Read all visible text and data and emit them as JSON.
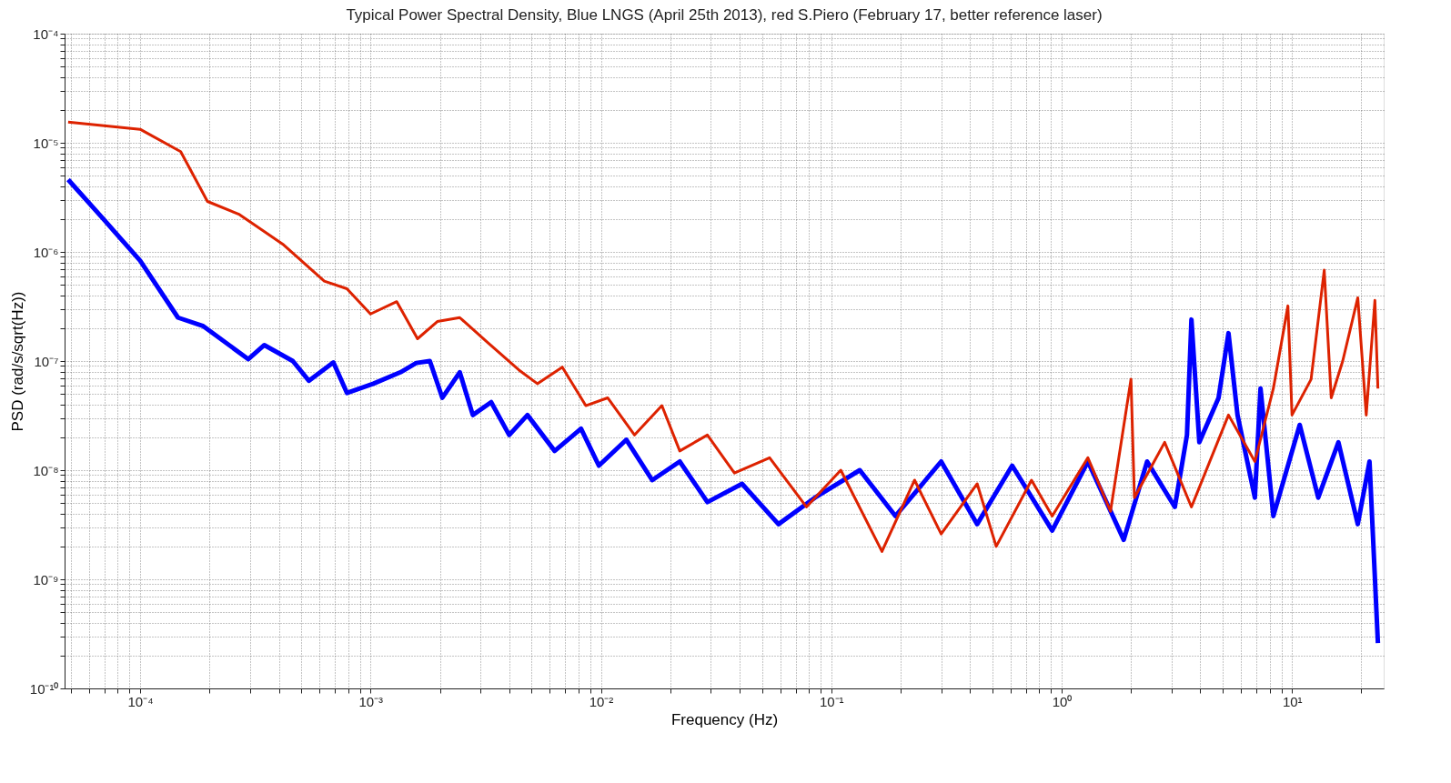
{
  "chart_data": {
    "type": "line",
    "title": "Typical Power Spectral Density, Blue LNGS (April 25th 2013), red S.Piero (February 17, better reference laser)",
    "xlabel": "Frequency (Hz)",
    "ylabel": "PSD (rad/s/sqrt(Hz))",
    "log": "xy",
    "grid": true,
    "legend": false,
    "marker": "none",
    "line_style": "solid",
    "xlim": [
      4.7e-05,
      25
    ],
    "ylim": [
      1e-10,
      0.0001
    ],
    "xticks": [
      {
        "value": 5e-05,
        "label": null
      },
      {
        "value": 6e-05,
        "label": null
      },
      {
        "value": 7e-05,
        "label": null
      },
      {
        "value": 8e-05,
        "label": null
      },
      {
        "value": 9e-05,
        "label": null
      },
      {
        "value": 0.0001,
        "label": "10⁻⁴"
      },
      {
        "value": 0.0002,
        "label": null
      },
      {
        "value": 0.0003,
        "label": null
      },
      {
        "value": 0.0004,
        "label": null
      },
      {
        "value": 0.0005,
        "label": null
      },
      {
        "value": 0.0006,
        "label": null
      },
      {
        "value": 0.0007,
        "label": null
      },
      {
        "value": 0.0008,
        "label": null
      },
      {
        "value": 0.0009,
        "label": null
      },
      {
        "value": 0.001,
        "label": "10⁻³"
      },
      {
        "value": 0.002,
        "label": null
      },
      {
        "value": 0.003,
        "label": null
      },
      {
        "value": 0.004,
        "label": null
      },
      {
        "value": 0.005,
        "label": null
      },
      {
        "value": 0.006,
        "label": null
      },
      {
        "value": 0.007,
        "label": null
      },
      {
        "value": 0.008,
        "label": null
      },
      {
        "value": 0.009,
        "label": null
      },
      {
        "value": 0.01,
        "label": "10⁻²"
      },
      {
        "value": 0.02,
        "label": null
      },
      {
        "value": 0.03,
        "label": null
      },
      {
        "value": 0.04,
        "label": null
      },
      {
        "value": 0.05,
        "label": null
      },
      {
        "value": 0.06,
        "label": null
      },
      {
        "value": 0.07,
        "label": null
      },
      {
        "value": 0.08,
        "label": null
      },
      {
        "value": 0.09,
        "label": null
      },
      {
        "value": 0.1,
        "label": "10⁻¹"
      },
      {
        "value": 0.2,
        "label": null
      },
      {
        "value": 0.3,
        "label": null
      },
      {
        "value": 0.4,
        "label": null
      },
      {
        "value": 0.5,
        "label": null
      },
      {
        "value": 0.6,
        "label": null
      },
      {
        "value": 0.7,
        "label": null
      },
      {
        "value": 0.8,
        "label": null
      },
      {
        "value": 0.9,
        "label": null
      },
      {
        "value": 1,
        "label": "10⁰"
      },
      {
        "value": 2,
        "label": null
      },
      {
        "value": 3,
        "label": null
      },
      {
        "value": 4,
        "label": null
      },
      {
        "value": 5,
        "label": null
      },
      {
        "value": 6,
        "label": null
      },
      {
        "value": 7,
        "label": null
      },
      {
        "value": 8,
        "label": null
      },
      {
        "value": 9,
        "label": null
      },
      {
        "value": 10,
        "label": "10¹"
      },
      {
        "value": 20,
        "label": null
      }
    ],
    "yticks": [
      {
        "value": 1e-10,
        "label": "10⁻¹⁰"
      },
      {
        "value": 2e-10,
        "label": null
      },
      {
        "value": 3e-10,
        "label": null
      },
      {
        "value": 4e-10,
        "label": null
      },
      {
        "value": 5e-10,
        "label": null
      },
      {
        "value": 6e-10,
        "label": null
      },
      {
        "value": 7e-10,
        "label": null
      },
      {
        "value": 8e-10,
        "label": null
      },
      {
        "value": 9e-10,
        "label": null
      },
      {
        "value": 1e-09,
        "label": "10⁻⁹"
      },
      {
        "value": 2e-09,
        "label": null
      },
      {
        "value": 3e-09,
        "label": null
      },
      {
        "value": 4e-09,
        "label": null
      },
      {
        "value": 5e-09,
        "label": null
      },
      {
        "value": 6e-09,
        "label": null
      },
      {
        "value": 7e-09,
        "label": null
      },
      {
        "value": 8e-09,
        "label": null
      },
      {
        "value": 9e-09,
        "label": null
      },
      {
        "value": 1e-08,
        "label": "10⁻⁸"
      },
      {
        "value": 2e-08,
        "label": null
      },
      {
        "value": 3e-08,
        "label": null
      },
      {
        "value": 4e-08,
        "label": null
      },
      {
        "value": 5e-08,
        "label": null
      },
      {
        "value": 6e-08,
        "label": null
      },
      {
        "value": 7e-08,
        "label": null
      },
      {
        "value": 8e-08,
        "label": null
      },
      {
        "value": 9e-08,
        "label": null
      },
      {
        "value": 1e-07,
        "label": "10⁻⁷"
      },
      {
        "value": 2e-07,
        "label": null
      },
      {
        "value": 3e-07,
        "label": null
      },
      {
        "value": 4e-07,
        "label": null
      },
      {
        "value": 5e-07,
        "label": null
      },
      {
        "value": 6e-07,
        "label": null
      },
      {
        "value": 7e-07,
        "label": null
      },
      {
        "value": 8e-07,
        "label": null
      },
      {
        "value": 9e-07,
        "label": null
      },
      {
        "value": 1e-06,
        "label": "10⁻⁶"
      },
      {
        "value": 2e-06,
        "label": null
      },
      {
        "value": 3e-06,
        "label": null
      },
      {
        "value": 4e-06,
        "label": null
      },
      {
        "value": 5e-06,
        "label": null
      },
      {
        "value": 6e-06,
        "label": null
      },
      {
        "value": 7e-06,
        "label": null
      },
      {
        "value": 8e-06,
        "label": null
      },
      {
        "value": 9e-06,
        "label": null
      },
      {
        "value": 1e-05,
        "label": "10⁻⁵"
      },
      {
        "value": 2e-05,
        "label": null
      },
      {
        "value": 3e-05,
        "label": null
      },
      {
        "value": 4e-05,
        "label": null
      },
      {
        "value": 5e-05,
        "label": null
      },
      {
        "value": 6e-05,
        "label": null
      },
      {
        "value": 7e-05,
        "label": null
      },
      {
        "value": 8e-05,
        "label": null
      },
      {
        "value": 9e-05,
        "label": null
      },
      {
        "value": 0.0001,
        "label": "10⁻⁴"
      }
    ],
    "series": [
      {
        "color": "#0000ff",
        "x": [
          4.87e-05,
          7e-05,
          0.0001,
          0.000146,
          0.000187,
          0.000295,
          0.000346,
          0.00046,
          0.00054,
          0.00069,
          0.00079,
          0.00103,
          0.00135,
          0.00158,
          0.00181,
          0.00205,
          0.00244,
          0.00278,
          0.00334,
          0.004,
          0.0048,
          0.0063,
          0.0082,
          0.0098,
          0.0129,
          0.0167,
          0.022,
          0.029,
          0.041,
          0.059,
          0.085,
          0.133,
          0.19,
          0.3,
          0.43,
          0.61,
          0.91,
          1.3,
          1.86,
          2.35,
          3.1,
          3.5,
          3.66,
          3.96,
          4.8,
          5.3,
          5.8,
          6.9,
          7.3,
          8.3,
          10.8,
          13.0,
          15.9,
          19.3,
          21.7,
          23.6
        ],
        "values": [
          4.6e-06,
          1.95e-06,
          8.3e-07,
          2.5e-07,
          2.1e-07,
          1.04e-07,
          1.4e-07,
          1e-07,
          6.6e-08,
          9.7e-08,
          5.1e-08,
          6.2e-08,
          7.9e-08,
          9.6e-08,
          1e-07,
          4.6e-08,
          7.9e-08,
          3.2e-08,
          4.2e-08,
          2.1e-08,
          3.2e-08,
          1.5e-08,
          2.4e-08,
          1.1e-08,
          1.9e-08,
          8.1e-09,
          1.2e-08,
          5.1e-09,
          7.5e-09,
          3.2e-09,
          5.6e-09,
          1e-08,
          3.8e-09,
          1.2e-08,
          3.2e-09,
          1.1e-08,
          2.8e-09,
          1.2e-08,
          2.3e-09,
          1.2e-08,
          4.6e-09,
          2.1e-08,
          2.4e-07,
          1.8e-08,
          4.6e-08,
          1.8e-07,
          3.2e-08,
          5.6e-09,
          5.6e-08,
          3.8e-09,
          2.6e-08,
          5.6e-09,
          1.8e-08,
          3.2e-09,
          1.2e-08,
          2.6e-10
        ]
      },
      {
        "color": "#dd2200",
        "x": [
          4.87e-05,
          0.0001,
          0.00015,
          0.000196,
          0.00027,
          0.00042,
          0.00063,
          0.00079,
          0.001,
          0.0013,
          0.0016,
          0.00195,
          0.00244,
          0.0032,
          0.0044,
          0.0053,
          0.0068,
          0.0086,
          0.0107,
          0.014,
          0.0184,
          0.022,
          0.029,
          0.038,
          0.054,
          0.078,
          0.11,
          0.166,
          0.23,
          0.3,
          0.43,
          0.52,
          0.74,
          0.91,
          1.3,
          1.63,
          2.0,
          2.07,
          2.8,
          3.66,
          5.3,
          6.9,
          8.3,
          9.6,
          10.0,
          12.1,
          13.8,
          14.8,
          16.6,
          19.3,
          21.0,
          22.9,
          23.6
        ],
        "values": [
          1.55e-05,
          1.33e-05,
          8.3e-06,
          2.9e-06,
          2.2e-06,
          1.16e-06,
          5.4e-07,
          4.6e-07,
          2.7e-07,
          3.5e-07,
          1.6e-07,
          2.3e-07,
          2.5e-07,
          1.5e-07,
          8.3e-08,
          6.2e-08,
          8.8e-08,
          3.9e-08,
          4.6e-08,
          2.1e-08,
          3.9e-08,
          1.5e-08,
          2.1e-08,
          9.4e-09,
          1.3e-08,
          4.6e-09,
          1e-08,
          1.8e-09,
          8.1e-09,
          2.6e-09,
          7.5e-09,
          2e-09,
          8.1e-09,
          3.8e-09,
          1.3e-08,
          4.2e-09,
          6.8e-08,
          5.6e-09,
          1.8e-08,
          4.6e-09,
          3.2e-08,
          1.2e-08,
          5.6e-08,
          3.2e-07,
          3.2e-08,
          6.8e-08,
          6.8e-07,
          4.6e-08,
          1e-07,
          3.8e-07,
          3.2e-08,
          3.6e-07,
          5.6e-08
        ]
      }
    ]
  }
}
